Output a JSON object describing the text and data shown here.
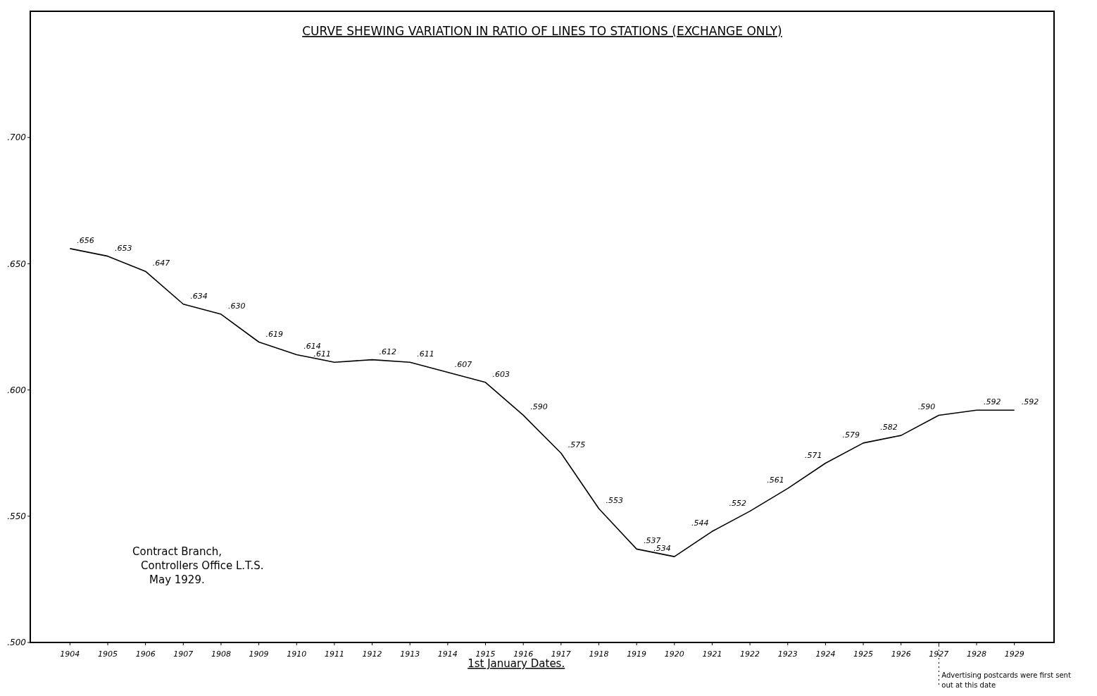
{
  "chart_data": {
    "type": "line",
    "title": "CURVE SHEWING VARIATION IN RATIO OF LINES TO STATIONS (EXCHANGE ONLY)",
    "xlabel": "1st January Dates.",
    "categories": [
      "1904",
      "1905",
      "1906",
      "1907",
      "1908",
      "1909",
      "1910",
      "1911",
      "1912",
      "1913",
      "1914",
      "1915",
      "1916",
      "1917",
      "1918",
      "1919",
      "1920",
      "1921",
      "1922",
      "1923",
      "1924",
      "1925",
      "1926",
      "1927",
      "1928",
      "1929"
    ],
    "series": [
      {
        "color": "#000000",
        "values": [
          0.656,
          0.653,
          0.647,
          0.634,
          0.63,
          0.619,
          0.614,
          0.611,
          0.612,
          0.611,
          0.607,
          0.603,
          0.59,
          0.575,
          0.553,
          0.537,
          0.534,
          0.544,
          0.552,
          0.561,
          0.571,
          0.579,
          0.582,
          0.59,
          0.592,
          0.592
        ],
        "value_labels": [
          ".656",
          ".653",
          ".647",
          ".634",
          ".630",
          ".619",
          ".614",
          ".611",
          ".612",
          ".611",
          ".607",
          ".603",
          ".590",
          ".575",
          ".553",
          ".537",
          ".534",
          ".544",
          ".552",
          ".561",
          ".571",
          ".579",
          ".582",
          ".590",
          ".592",
          ".592"
        ]
      }
    ],
    "ylim": [
      0.5,
      0.75
    ],
    "yticks": [
      {
        "value": 0.5,
        "label": ".500"
      },
      {
        "value": 0.55,
        "label": ".550"
      },
      {
        "value": 0.6,
        "label": ".600"
      },
      {
        "value": 0.65,
        "label": ".650"
      },
      {
        "value": 0.7,
        "label": ".700"
      }
    ],
    "ref_lines": [
      {
        "axis": "x",
        "value": "1927",
        "label": "Advertising postcards were first sent out at this date",
        "line_style": "dotted"
      }
    ],
    "annotations": [
      "Contract Branch,",
      "Controllers Office L.T.S.",
      "May 1929."
    ],
    "grid": false,
    "marker": "none",
    "line_style": "solid"
  }
}
